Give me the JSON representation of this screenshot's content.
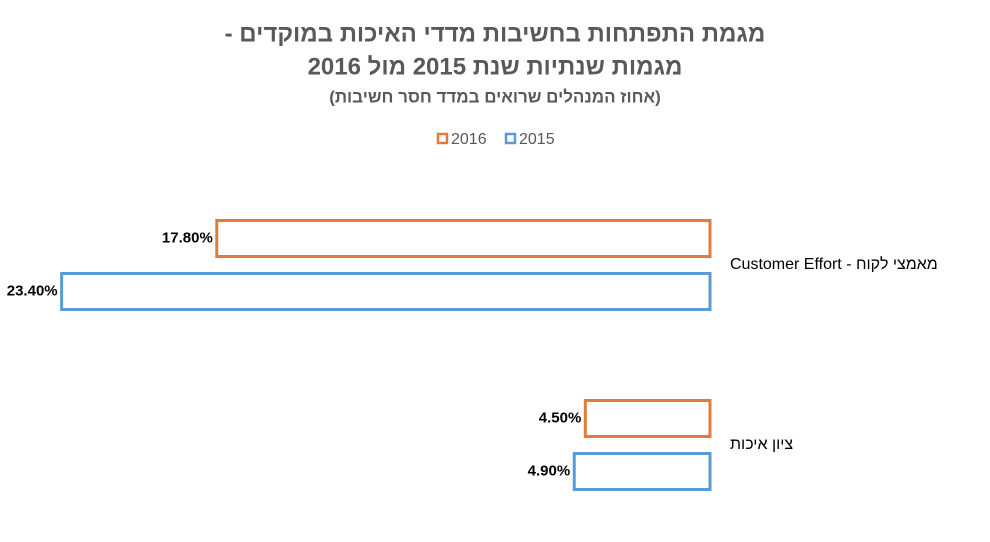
{
  "chart_data": {
    "type": "barh",
    "title": [
      "מגמת התפתחות בחשיבות מדדי האיכות במוקדים -",
      "מגמות שנתיות שנת 2015 מול 2016"
    ],
    "subtitle": "(אחוז המנהלים שרואים במדד חסר חשיבות)",
    "categories": [
      "מאמצי לקוח - Customer Effort",
      "ציון איכות"
    ],
    "series": [
      {
        "name": "2016",
        "color": "#e07b39",
        "values": [
          17.8,
          4.5
        ],
        "value_labels": [
          "17.80%",
          "4.50%"
        ]
      },
      {
        "name": "2015",
        "color": "#5b9bd5",
        "values": [
          23.4,
          4.9
        ],
        "value_labels": [
          "23.40%",
          "4.90%"
        ]
      }
    ],
    "xlim": [
      0,
      24
    ]
  }
}
